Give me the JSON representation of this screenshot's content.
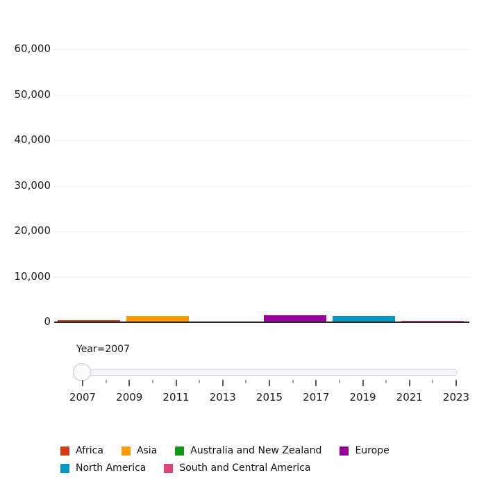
{
  "chart_data": {
    "type": "bar",
    "title": "",
    "xlabel": "",
    "ylabel": "",
    "categories": [
      "Africa",
      "Asia",
      "Australia and New Zealand",
      "Europe",
      "North America",
      "South and Central America"
    ],
    "values": [
      450,
      1400,
      50,
      1500,
      1350,
      380
    ],
    "colors": [
      "#dc3912",
      "#ff9900",
      "#109618",
      "#990099",
      "#0099c6",
      "#dd4477"
    ],
    "ylim": [
      0,
      60000
    ],
    "yticks": [
      0,
      10000,
      20000,
      30000,
      40000,
      50000,
      60000
    ],
    "ytick_labels": [
      "0",
      "10,000",
      "20,000",
      "30,000",
      "40,000",
      "50,000",
      "60,000"
    ],
    "grid": true,
    "legend_position": "bottom",
    "slider": {
      "label": "Year=2007",
      "current_year": 2007,
      "min_year": 2007,
      "max_year": 2023,
      "labeled_years": [
        "2007",
        "2009",
        "2011",
        "2013",
        "2015",
        "2017",
        "2019",
        "2021",
        "2023"
      ]
    },
    "legend": [
      {
        "label": "Africa",
        "color": "#dc3912"
      },
      {
        "label": "Asia",
        "color": "#ff9900"
      },
      {
        "label": "Australia and New Zealand",
        "color": "#109618"
      },
      {
        "label": "Europe",
        "color": "#990099"
      },
      {
        "label": "North America",
        "color": "#0099c6"
      },
      {
        "label": "South and Central America",
        "color": "#dd4477"
      }
    ]
  }
}
